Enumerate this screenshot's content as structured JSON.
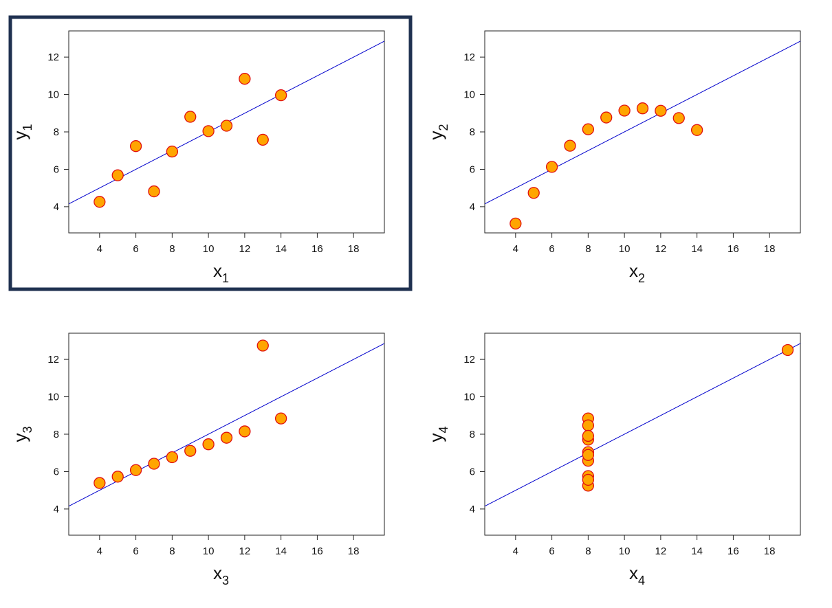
{
  "chart_data": [
    {
      "type": "scatter",
      "xlabel": "x",
      "xlabel_sub": "1",
      "ylabel": "y",
      "ylabel_sub": "1",
      "xlim": [
        2.3,
        19.7
      ],
      "ylim": [
        2.6,
        13.4
      ],
      "xticks": [
        "4",
        "6",
        "8",
        "10",
        "12",
        "14",
        "16",
        "18"
      ],
      "yticks": [
        "4",
        "6",
        "8",
        "10",
        "12"
      ],
      "grid": false,
      "selected": true,
      "fit_line": {
        "intercept": 3.0,
        "slope": 0.5
      },
      "x": [
        10,
        8,
        13,
        9,
        11,
        14,
        6,
        4,
        12,
        7,
        5
      ],
      "y": [
        8.04,
        6.95,
        7.58,
        8.81,
        8.33,
        9.96,
        7.24,
        4.26,
        10.84,
        4.82,
        5.68
      ]
    },
    {
      "type": "scatter",
      "xlabel": "x",
      "xlabel_sub": "2",
      "ylabel": "y",
      "ylabel_sub": "2",
      "xlim": [
        2.3,
        19.7
      ],
      "ylim": [
        2.6,
        13.4
      ],
      "xticks": [
        "4",
        "6",
        "8",
        "10",
        "12",
        "14",
        "16",
        "18"
      ],
      "yticks": [
        "4",
        "6",
        "8",
        "10",
        "12"
      ],
      "grid": false,
      "selected": false,
      "fit_line": {
        "intercept": 3.0,
        "slope": 0.5
      },
      "x": [
        10,
        8,
        13,
        9,
        11,
        14,
        6,
        4,
        12,
        7,
        5
      ],
      "y": [
        9.14,
        8.14,
        8.74,
        8.77,
        9.26,
        8.1,
        6.13,
        3.1,
        9.13,
        7.26,
        4.74
      ]
    },
    {
      "type": "scatter",
      "xlabel": "x",
      "xlabel_sub": "3",
      "ylabel": "y",
      "ylabel_sub": "3",
      "xlim": [
        2.3,
        19.7
      ],
      "ylim": [
        2.6,
        13.4
      ],
      "xticks": [
        "4",
        "6",
        "8",
        "10",
        "12",
        "14",
        "16",
        "18"
      ],
      "yticks": [
        "4",
        "6",
        "8",
        "10",
        "12"
      ],
      "grid": false,
      "selected": false,
      "fit_line": {
        "intercept": 3.0,
        "slope": 0.5
      },
      "x": [
        10,
        8,
        13,
        9,
        11,
        14,
        6,
        4,
        12,
        7,
        5
      ],
      "y": [
        7.46,
        6.77,
        12.74,
        7.11,
        7.81,
        8.84,
        6.08,
        5.39,
        8.15,
        6.42,
        5.73
      ]
    },
    {
      "type": "scatter",
      "xlabel": "x",
      "xlabel_sub": "4",
      "ylabel": "y",
      "ylabel_sub": "4",
      "xlim": [
        2.3,
        19.7
      ],
      "ylim": [
        2.6,
        13.4
      ],
      "xticks": [
        "4",
        "6",
        "8",
        "10",
        "12",
        "14",
        "16",
        "18"
      ],
      "yticks": [
        "4",
        "6",
        "8",
        "10",
        "12"
      ],
      "grid": false,
      "selected": false,
      "fit_line": {
        "intercept": 3.0,
        "slope": 0.5
      },
      "x": [
        8,
        8,
        8,
        8,
        8,
        8,
        8,
        19,
        8,
        8,
        8
      ],
      "y": [
        6.58,
        5.76,
        7.71,
        8.84,
        8.47,
        7.04,
        5.25,
        12.5,
        5.56,
        7.91,
        6.89
      ]
    }
  ],
  "colors": {
    "point_fill": "#ffa500",
    "point_stroke": "#e01010",
    "fit_line": "#0000cc",
    "selection_border": "#1f3150",
    "axis": "#222222"
  }
}
